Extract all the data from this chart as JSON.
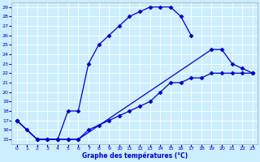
{
  "title": "Graphe des températures (°C)",
  "bg_color": "#cceeff",
  "line_color": "#0000cc",
  "marker": "D",
  "markersize": 2.5,
  "linewidth": 0.9,
  "xlim": [
    -0.5,
    23.5
  ],
  "ylim": [
    14.5,
    29.5
  ],
  "xticks": [
    0,
    1,
    2,
    3,
    4,
    5,
    6,
    7,
    8,
    9,
    10,
    11,
    12,
    13,
    14,
    15,
    16,
    17,
    18,
    19,
    20,
    21,
    22,
    23
  ],
  "yticks": [
    15,
    16,
    17,
    18,
    19,
    20,
    21,
    22,
    23,
    24,
    25,
    26,
    27,
    28,
    29
  ],
  "line1_x": [
    0,
    1,
    2,
    3,
    4,
    5,
    6,
    7,
    8,
    9,
    10,
    11,
    12,
    13,
    14,
    15,
    16,
    17
  ],
  "line1_y": [
    17,
    16,
    15,
    15,
    15,
    18,
    18,
    23,
    25,
    26,
    27,
    28,
    28.5,
    29,
    29,
    29,
    28,
    26
  ],
  "line2_x": [
    0,
    2,
    3,
    4,
    5,
    6,
    7,
    8,
    9,
    10,
    11,
    12,
    13,
    14,
    15,
    16,
    17,
    18,
    19,
    20,
    21,
    22,
    23
  ],
  "line2_y": [
    17,
    15,
    15,
    15,
    15,
    15,
    16,
    16.5,
    17,
    17.5,
    18,
    18.5,
    19,
    20,
    21,
    21,
    21.5,
    21.5,
    22,
    22,
    22,
    22,
    22
  ],
  "line3_x": [
    0,
    2,
    3,
    4,
    5,
    6,
    19,
    20,
    21,
    22,
    23
  ],
  "line3_y": [
    17,
    15,
    15,
    15,
    15,
    15,
    24.5,
    24.5,
    23,
    22.5,
    22
  ]
}
